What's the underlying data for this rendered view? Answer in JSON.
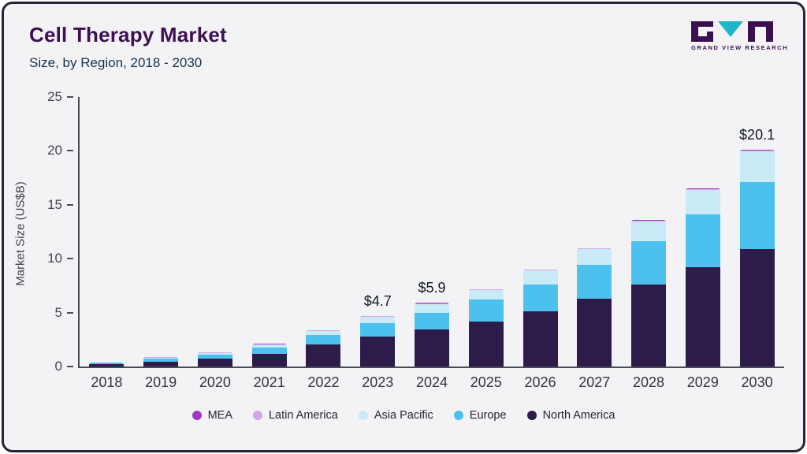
{
  "title": "Cell Therapy Market",
  "subtitle": "Size, by Region, 2018 - 2030",
  "logo": {
    "text": "GRAND VIEW RESEARCH"
  },
  "chart_data": {
    "type": "bar",
    "stacked": true,
    "title": "Cell Therapy Market Size, by Region, 2018 - 2030",
    "xlabel": "",
    "ylabel": "Market Size (US$B)",
    "ylim": [
      0,
      25
    ],
    "yticks": [
      0,
      5,
      10,
      15,
      20,
      25
    ],
    "grid": false,
    "legend_position": "bottom",
    "categories": [
      "2018",
      "2019",
      "2020",
      "2021",
      "2022",
      "2023",
      "2024",
      "2025",
      "2026",
      "2027",
      "2028",
      "2029",
      "2030"
    ],
    "series": [
      {
        "name": "North America",
        "color": "#2d1b4a",
        "values": [
          0.22,
          0.47,
          0.72,
          1.15,
          2.05,
          2.8,
          3.4,
          4.2,
          5.1,
          6.3,
          7.6,
          9.2,
          10.9
        ]
      },
      {
        "name": "Europe",
        "color": "#4cc1ee",
        "values": [
          0.12,
          0.26,
          0.4,
          0.62,
          0.85,
          1.25,
          1.6,
          2.0,
          2.5,
          3.1,
          4.0,
          4.9,
          6.2
        ]
      },
      {
        "name": "Asia Pacific",
        "color": "#c9eaf7",
        "values": [
          0.05,
          0.1,
          0.15,
          0.26,
          0.42,
          0.55,
          0.8,
          0.9,
          1.3,
          1.5,
          1.85,
          2.25,
          2.85
        ]
      },
      {
        "name": "Latin America",
        "color": "#d5a6e6",
        "values": [
          0.007,
          0.013,
          0.02,
          0.04,
          0.05,
          0.07,
          0.07,
          0.07,
          0.07,
          0.07,
          0.1,
          0.1,
          0.1
        ]
      },
      {
        "name": "MEA",
        "color": "#a238c8",
        "values": [
          0.003,
          0.007,
          0.01,
          0.03,
          0.03,
          0.03,
          0.03,
          0.03,
          0.03,
          0.03,
          0.05,
          0.05,
          0.05
        ]
      }
    ],
    "annotations": {
      "2023": "$4.7",
      "2024": "$5.9",
      "2030": "$20.1"
    },
    "legend": [
      "MEA",
      "Latin America",
      "Asia Pacific",
      "Europe",
      "North America"
    ]
  }
}
